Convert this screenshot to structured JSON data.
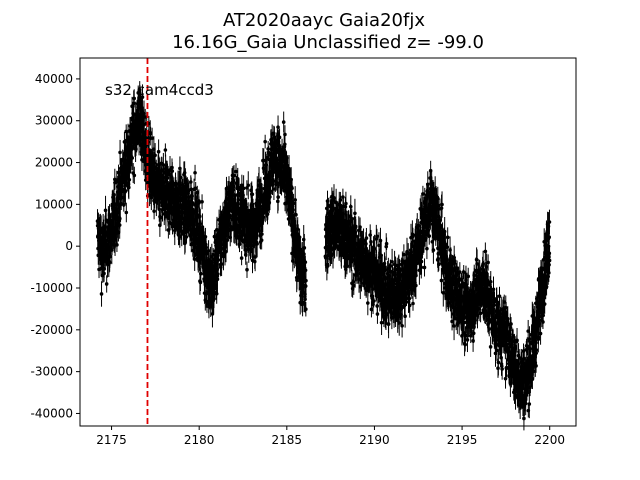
{
  "chart_data": {
    "type": "scatter",
    "title_line1": "AT2020aayc  Gaia20fjx",
    "title_line2": "16.16G_Gaia Unclassified z= -99.0",
    "xlabel": "",
    "ylabel": "",
    "xlim": [
      2173.2,
      2201.5
    ],
    "ylim": [
      -43000,
      45000
    ],
    "x_ticks": [
      2175,
      2180,
      2185,
      2190,
      2195,
      2200
    ],
    "y_ticks": [
      -40000,
      -30000,
      -20000,
      -10000,
      0,
      10000,
      20000,
      30000,
      40000
    ],
    "annotation": "s32 cam4ccd3",
    "vline": {
      "x": 2177.05,
      "color": "#e00000",
      "style": "dashed"
    },
    "marker_color": "#000000",
    "grid": false,
    "series": [
      {
        "segments": [
          {
            "x": [
              2174.2,
              2174.5,
              2175.0,
              2175.6,
              2176.2,
              2176.6,
              2177.0,
              2177.6,
              2178.3,
              2179.0,
              2179.7,
              2180.2,
              2180.7,
              2181.3,
              2181.9,
              2182.5,
              2183.1,
              2183.8,
              2184.3,
              2184.9,
              2185.4,
              2185.8,
              2186.1
            ],
            "y": [
              2000,
              -2000,
              3000,
              15000,
              26000,
              31000,
              22000,
              13000,
              12000,
              9000,
              7000,
              -1000,
              -10000,
              3000,
              11000,
              6000,
              4000,
              14000,
              22000,
              17000,
              5000,
              -7000,
              -8000
            ]
          },
          {
            "x": [
              2187.2,
              2187.7,
              2188.3,
              2189.0,
              2189.7,
              2190.3,
              2190.9,
              2191.5,
              2192.1,
              2192.7,
              2193.2,
              2193.6,
              2194.1,
              2194.7,
              2195.3,
              2195.8,
              2196.3,
              2196.9,
              2197.5,
              2198.0,
              2198.5,
              2199.0,
              2199.5,
              2200.0
            ],
            "y": [
              2000,
              5000,
              3000,
              -2000,
              -5000,
              -8000,
              -12000,
              -10000,
              -6000,
              3000,
              10000,
              5000,
              -6000,
              -12000,
              -16000,
              -11000,
              -10000,
              -19000,
              -22000,
              -29000,
              -33000,
              -26000,
              -12000,
              2000
            ]
          }
        ],
        "spread": 4000,
        "error": 2500
      }
    ]
  }
}
